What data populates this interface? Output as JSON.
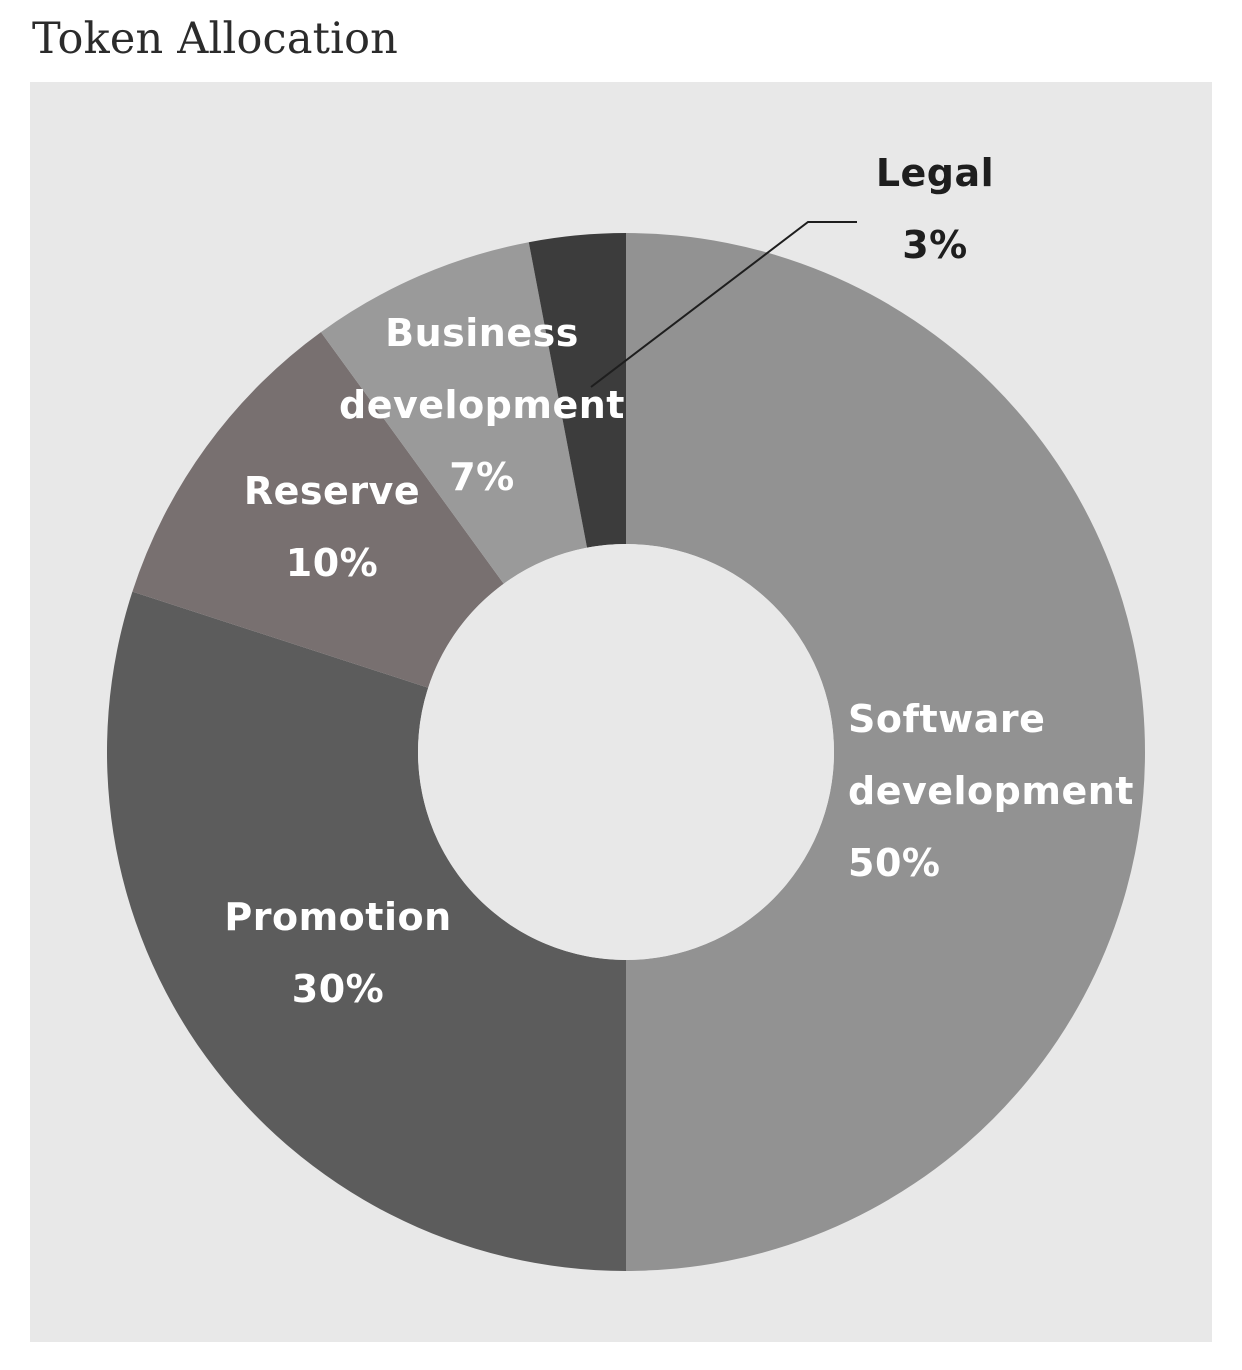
{
  "page": {
    "title": "Token Allocation"
  },
  "chart_data": {
    "type": "pie",
    "variant": "donut",
    "title": "Token Allocation",
    "slices": [
      {
        "label_lines": [
          "Software",
          "development"
        ],
        "value": 50,
        "value_label": "50%",
        "color": "#929292"
      },
      {
        "label_lines": [
          "Promotion"
        ],
        "value": 30,
        "value_label": "30%",
        "color": "#5c5c5c"
      },
      {
        "label_lines": [
          "Reserve"
        ],
        "value": 10,
        "value_label": "10%",
        "color": "#787070"
      },
      {
        "label_lines": [
          "Business",
          "development"
        ],
        "value": 7,
        "value_label": "7%",
        "color": "#9a9a9a"
      },
      {
        "label_lines": [
          "Legal"
        ],
        "value": 3,
        "value_label": "3%",
        "color": "#3c3c3c"
      }
    ],
    "background_color": "#e8e8e8",
    "hole_color": "#e8e8e8",
    "label_color": "#ffffff",
    "external_label_color": "#1e1e1e",
    "leader_line_color": "#1e1e1e",
    "start": "12 o'clock",
    "direction": "clockwise"
  }
}
